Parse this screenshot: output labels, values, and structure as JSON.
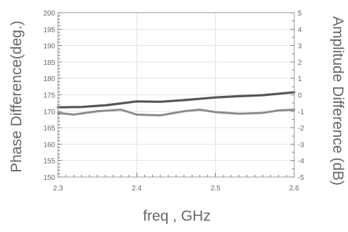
{
  "chart_data": {
    "type": "line",
    "title": "",
    "xlabel": "freq , GHz",
    "ylabel_left": "Phase Difference(deg.)",
    "ylabel_right": "Amplitude Difference (dB)",
    "xlim": [
      2.3,
      2.6
    ],
    "ylim_left": [
      150,
      200
    ],
    "ylim_right": [
      -5,
      5
    ],
    "x_ticks": [
      "2.3",
      "2.4",
      "2.5",
      "2.6"
    ],
    "y_left_ticks": [
      "150",
      "155",
      "160",
      "165",
      "170",
      "175",
      "180",
      "185",
      "190",
      "195",
      "200"
    ],
    "y_right_ticks": [
      "-5",
      "-4",
      "-3",
      "-2",
      "-1",
      "0",
      "1",
      "2",
      "3",
      "4",
      "5"
    ],
    "grid": true,
    "series": [
      {
        "axis": "left",
        "color": "#555555",
        "x": [
          2.3,
          2.33,
          2.36,
          2.38,
          2.4,
          2.43,
          2.46,
          2.5,
          2.53,
          2.56,
          2.6
        ],
        "y": [
          171.2,
          171.3,
          171.8,
          172.4,
          173.0,
          172.9,
          173.4,
          174.2,
          174.6,
          174.9,
          175.8
        ]
      },
      {
        "axis": "right",
        "color": "#8c8c8c",
        "x": [
          2.3,
          2.32,
          2.35,
          2.38,
          2.4,
          2.43,
          2.46,
          2.48,
          2.5,
          2.53,
          2.56,
          2.58,
          2.6
        ],
        "y": [
          -1.1,
          -1.2,
          -1.0,
          -0.9,
          -1.2,
          -1.25,
          -1.0,
          -0.9,
          -1.05,
          -1.15,
          -1.1,
          -0.95,
          -0.9
        ]
      }
    ]
  }
}
